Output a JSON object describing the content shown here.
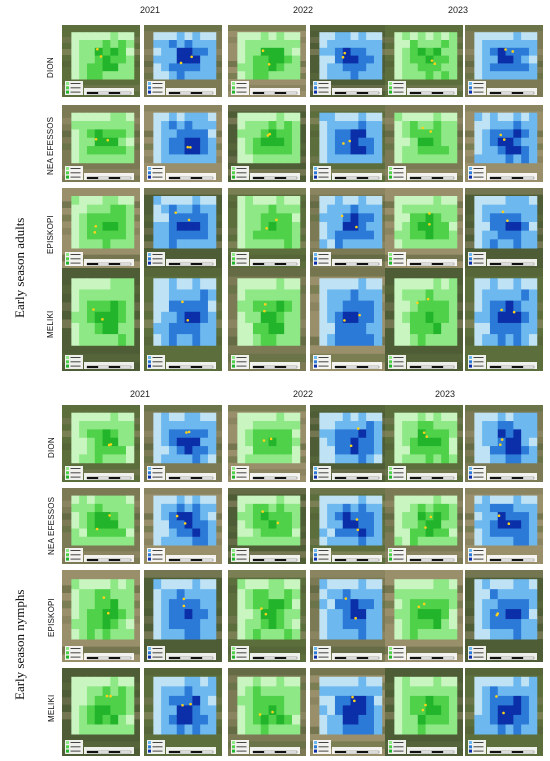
{
  "sections": [
    {
      "label": "Early season adults",
      "years": [
        "2021",
        "2022",
        "2023"
      ],
      "sites": [
        "DION",
        "NEA EFESSOS",
        "EPISKOPI",
        "MELIKI"
      ]
    },
    {
      "label": "Early season nymphs",
      "years": [
        "2021",
        "2022",
        "2023"
      ],
      "sites": [
        "DION",
        "NEA EFESSOS",
        "EPISKOPI",
        "MELIKI"
      ]
    }
  ],
  "map_styles": {
    "green_scale": [
      "#c8f5c0",
      "#8fe886",
      "#4fd14a",
      "#22b42a"
    ],
    "blue_scale": [
      "#bfe3f5",
      "#6cb8ef",
      "#2c7ad8",
      "#0a2fa8"
    ],
    "background_earth": [
      "#5c6e3c",
      "#7b7a55",
      "#9a8f6b",
      "#4f5d36"
    ]
  }
}
